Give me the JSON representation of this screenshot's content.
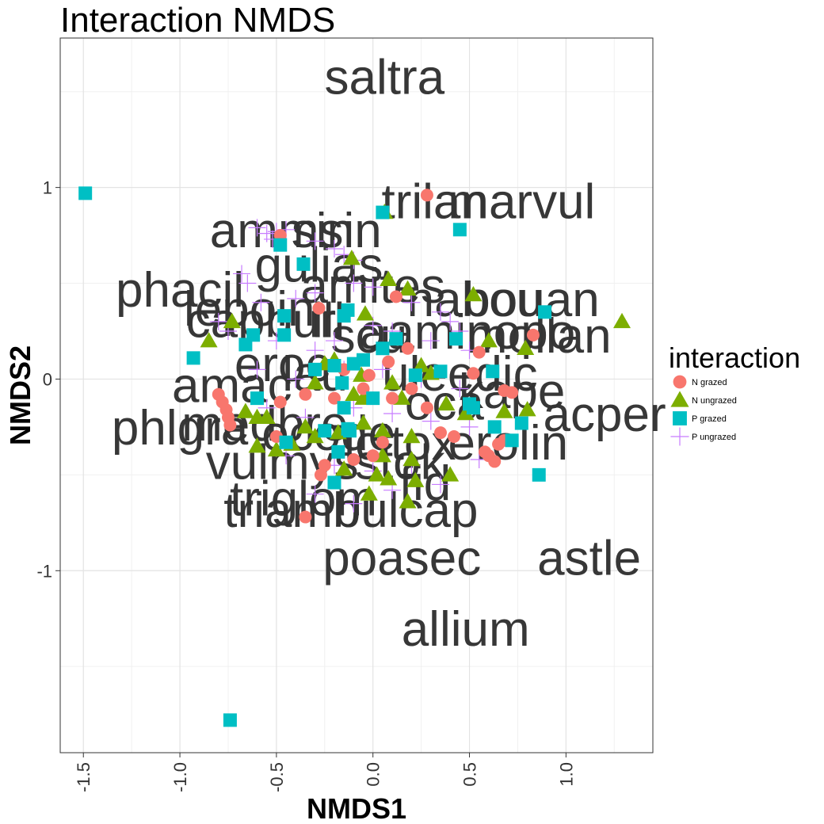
{
  "chart_data": {
    "type": "scatter",
    "title": "Interaction NMDS",
    "xlabel": "NMDS1",
    "ylabel": "NMDS2",
    "xlim": [
      -1.62,
      1.45
    ],
    "ylim": [
      -1.95,
      1.78
    ],
    "x_ticks": [
      -1.5,
      -1.0,
      -0.5,
      0.0,
      0.5,
      1.0
    ],
    "x_tick_labels": [
      "-1.5",
      "-1.0",
      "-0.5",
      "0.0",
      "0.5",
      "1.0"
    ],
    "y_ticks": [
      -1,
      0,
      1
    ],
    "y_tick_labels": [
      "-1",
      "0",
      "1"
    ],
    "grid": true,
    "legend": {
      "title": "interaction",
      "position": "right",
      "entries": [
        "N grazed",
        "N ungrazed",
        "P grazed",
        "P ungrazed"
      ]
    },
    "colors": {
      "N grazed": "#F8766D",
      "N ungrazed": "#7CAE00",
      "P grazed": "#00BFC4",
      "P ungrazed": "#C77CFF"
    },
    "shapes": {
      "N grazed": "circle",
      "N ungrazed": "triangle",
      "P grazed": "square",
      "P ungrazed": "plus"
    },
    "series": [
      {
        "name": "N grazed",
        "points": [
          [
            0.28,
            0.96
          ],
          [
            -0.48,
            0.75
          ],
          [
            0.12,
            0.43
          ],
          [
            -0.28,
            0.37
          ],
          [
            0.83,
            0.23
          ],
          [
            0.55,
            0.14
          ],
          [
            -0.15,
            0.05
          ],
          [
            0.08,
            0.09
          ],
          [
            0.18,
            0.16
          ],
          [
            -0.05,
            -0.05
          ],
          [
            -0.02,
            0.02
          ],
          [
            0.52,
            0.03
          ],
          [
            0.68,
            -0.06
          ],
          [
            0.72,
            -0.07
          ],
          [
            -0.8,
            -0.08
          ],
          [
            -0.78,
            -0.12
          ],
          [
            -0.76,
            -0.16
          ],
          [
            -0.75,
            -0.2
          ],
          [
            -0.74,
            -0.24
          ],
          [
            -0.48,
            -0.12
          ],
          [
            -0.35,
            -0.08
          ],
          [
            -0.2,
            -0.1
          ],
          [
            0.1,
            -0.1
          ],
          [
            0.2,
            -0.05
          ],
          [
            0.28,
            -0.15
          ],
          [
            0.35,
            -0.28
          ],
          [
            0.42,
            -0.3
          ],
          [
            -0.5,
            -0.3
          ],
          [
            -0.25,
            -0.45
          ],
          [
            -0.27,
            -0.5
          ],
          [
            -0.1,
            -0.42
          ],
          [
            0.05,
            -0.33
          ],
          [
            0.58,
            -0.38
          ],
          [
            0.6,
            -0.4
          ],
          [
            0.63,
            -0.43
          ],
          [
            0.68,
            -0.32
          ],
          [
            0.65,
            -0.34
          ],
          [
            -0.35,
            -0.72
          ],
          [
            0.0,
            -0.4
          ]
        ]
      },
      {
        "name": "N ungrazed",
        "points": [
          [
            0.06,
            0.87
          ],
          [
            -0.11,
            0.63
          ],
          [
            0.08,
            0.52
          ],
          [
            0.18,
            0.47
          ],
          [
            0.52,
            0.44
          ],
          [
            -0.73,
            0.3
          ],
          [
            -0.85,
            0.2
          ],
          [
            -0.04,
            0.34
          ],
          [
            1.29,
            0.3
          ],
          [
            0.6,
            0.2
          ],
          [
            0.79,
            0.16
          ],
          [
            -0.25,
            0.08
          ],
          [
            -0.2,
            0.1
          ],
          [
            0.25,
            0.07
          ],
          [
            -0.06,
            0.02
          ],
          [
            0.1,
            -0.02
          ],
          [
            0.3,
            0.03
          ],
          [
            -0.3,
            -0.02
          ],
          [
            -0.1,
            -0.08
          ],
          [
            -0.05,
            -0.1
          ],
          [
            0.15,
            -0.1
          ],
          [
            0.38,
            -0.13
          ],
          [
            0.48,
            -0.18
          ],
          [
            0.68,
            -0.17
          ],
          [
            0.8,
            -0.16
          ],
          [
            -0.66,
            -0.17
          ],
          [
            -0.6,
            -0.2
          ],
          [
            -0.55,
            -0.2
          ],
          [
            -0.35,
            -0.25
          ],
          [
            -0.3,
            -0.3
          ],
          [
            -0.18,
            -0.28
          ],
          [
            -0.05,
            -0.23
          ],
          [
            0.05,
            -0.27
          ],
          [
            0.2,
            -0.3
          ],
          [
            -0.6,
            -0.35
          ],
          [
            -0.5,
            -0.37
          ],
          [
            -0.42,
            -0.34
          ],
          [
            0.05,
            -0.4
          ],
          [
            0.2,
            -0.42
          ],
          [
            -0.15,
            -0.47
          ],
          [
            0.4,
            -0.5
          ],
          [
            0.02,
            -0.5
          ],
          [
            0.08,
            -0.52
          ],
          [
            0.22,
            -0.53
          ],
          [
            -0.02,
            -0.6
          ],
          [
            0.18,
            -0.64
          ]
        ]
      },
      {
        "name": "P grazed",
        "points": [
          [
            -1.49,
            0.97
          ],
          [
            0.05,
            0.87
          ],
          [
            0.45,
            0.78
          ],
          [
            -0.48,
            0.7
          ],
          [
            -0.36,
            0.6
          ],
          [
            -0.62,
            0.23
          ],
          [
            -0.46,
            0.33
          ],
          [
            -0.46,
            0.23
          ],
          [
            -0.13,
            0.36
          ],
          [
            -0.15,
            0.33
          ],
          [
            0.89,
            0.35
          ],
          [
            -0.93,
            0.11
          ],
          [
            -0.66,
            0.18
          ],
          [
            0.43,
            0.21
          ],
          [
            0.12,
            0.21
          ],
          [
            0.05,
            0.16
          ],
          [
            -0.1,
            0.08
          ],
          [
            -0.2,
            0.07
          ],
          [
            -0.05,
            0.1
          ],
          [
            0.35,
            0.04
          ],
          [
            0.62,
            0.04
          ],
          [
            0.22,
            0.02
          ],
          [
            -0.16,
            -0.02
          ],
          [
            -0.3,
            0.05
          ],
          [
            -0.6,
            -0.1
          ],
          [
            0.0,
            -0.1
          ],
          [
            -0.15,
            -0.15
          ],
          [
            0.5,
            -0.13
          ],
          [
            0.52,
            -0.15
          ],
          [
            -0.25,
            -0.27
          ],
          [
            -0.12,
            -0.27
          ],
          [
            -0.13,
            -0.26
          ],
          [
            0.63,
            -0.25
          ],
          [
            0.77,
            -0.23
          ],
          [
            -0.45,
            -0.33
          ],
          [
            0.72,
            -0.32
          ],
          [
            -0.18,
            -0.38
          ],
          [
            0.86,
            -0.5
          ],
          [
            -0.2,
            -0.54
          ],
          [
            -0.74,
            -1.78
          ]
        ]
      },
      {
        "name": "P ungrazed",
        "points": [
          [
            -0.6,
            0.79
          ],
          [
            -0.55,
            0.76
          ],
          [
            -0.52,
            0.73
          ],
          [
            -0.5,
            0.77
          ],
          [
            -0.45,
            0.78
          ],
          [
            -0.3,
            0.72
          ],
          [
            -0.2,
            0.68
          ],
          [
            -0.15,
            0.65
          ],
          [
            -0.1,
            0.62
          ],
          [
            -0.68,
            0.55
          ],
          [
            -0.65,
            0.5
          ],
          [
            -0.58,
            0.4
          ],
          [
            -0.4,
            0.42
          ],
          [
            -0.3,
            0.45
          ],
          [
            -0.1,
            0.5
          ],
          [
            0.0,
            0.48
          ],
          [
            0.2,
            0.4
          ],
          [
            0.35,
            0.35
          ],
          [
            0.4,
            0.3
          ],
          [
            0.45,
            0.25
          ],
          [
            -0.8,
            0.3
          ],
          [
            -0.75,
            0.25
          ],
          [
            -0.5,
            0.2
          ],
          [
            -0.3,
            0.15
          ],
          [
            -0.2,
            0.2
          ],
          [
            0.0,
            0.28
          ],
          [
            0.1,
            0.25
          ],
          [
            0.3,
            0.2
          ],
          [
            0.5,
            0.15
          ],
          [
            -0.6,
            0.05
          ],
          [
            -0.4,
            0.0
          ],
          [
            -0.15,
            0.05
          ],
          [
            0.05,
            0.05
          ],
          [
            0.25,
            0.0
          ],
          [
            0.45,
            -0.05
          ],
          [
            -0.55,
            -0.15
          ],
          [
            -0.35,
            -0.2
          ],
          [
            -0.1,
            -0.15
          ],
          [
            0.1,
            -0.18
          ],
          [
            0.3,
            -0.22
          ],
          [
            0.5,
            -0.25
          ],
          [
            -0.45,
            -0.4
          ],
          [
            -0.2,
            -0.45
          ],
          [
            0.0,
            -0.48
          ],
          [
            0.2,
            -0.45
          ],
          [
            0.35,
            -0.55
          ],
          [
            -0.3,
            -0.6
          ],
          [
            -0.1,
            -0.65
          ],
          [
            0.1,
            -0.58
          ],
          [
            0.55,
            -0.42
          ]
        ]
      }
    ],
    "species_labels": [
      {
        "text": "saltra",
        "x": 0.06,
        "y": 1.58
      },
      {
        "text": "trilan",
        "x": 0.32,
        "y": 0.93
      },
      {
        "text": "marvul",
        "x": 0.77,
        "y": 0.93
      },
      {
        "text": "ammsin",
        "x": -0.4,
        "y": 0.78
      },
      {
        "text": "sin",
        "x": -0.26,
        "y": 0.78
      },
      {
        "text": "gulias",
        "x": -0.28,
        "y": 0.6
      },
      {
        "text": "phacil",
        "x": -1.0,
        "y": 0.47
      },
      {
        "text": "amites",
        "x": 0.0,
        "y": 0.49
      },
      {
        "text": "nabou",
        "x": 0.53,
        "y": 0.42
      },
      {
        "text": "bouan",
        "x": 0.82,
        "y": 0.42
      },
      {
        "text": "lepoin",
        "x": -0.64,
        "y": 0.37
      },
      {
        "text": "capbur",
        "x": -0.58,
        "y": 0.31
      },
      {
        "text": "ill",
        "x": -0.23,
        "y": 0.31
      },
      {
        "text": "scu",
        "x": -0.02,
        "y": 0.23
      },
      {
        "text": "aaminopo",
        "x": 0.49,
        "y": 0.25
      },
      {
        "text": "mollan",
        "x": 0.86,
        "y": 0.23
      },
      {
        "text": "eroc",
        "x": -0.47,
        "y": 0.08
      },
      {
        "text": "lau",
        "x": -0.3,
        "y": 0.03
      },
      {
        "text": "uleedic",
        "x": 0.45,
        "y": 0.03
      },
      {
        "text": "amac",
        "x": -0.73,
        "y": -0.03
      },
      {
        "text": "oca",
        "x": 0.37,
        "y": -0.12
      },
      {
        "text": "kape",
        "x": 0.72,
        "y": -0.06
      },
      {
        "text": "acper",
        "x": 1.2,
        "y": -0.18
      },
      {
        "text": "phlgra",
        "x": -1.0,
        "y": -0.25
      },
      {
        "text": "medbre",
        "x": -0.56,
        "y": -0.23
      },
      {
        "text": "ocode",
        "x": -0.23,
        "y": -0.28
      },
      {
        "text": "icitox",
        "x": 0.14,
        "y": -0.33
      },
      {
        "text": "erolin",
        "x": 0.7,
        "y": -0.33
      },
      {
        "text": "vulmys",
        "x": -0.47,
        "y": -0.43
      },
      {
        "text": "stok",
        "x": 0.14,
        "y": -0.43
      },
      {
        "text": "fid",
        "x": 0.27,
        "y": -0.54
      },
      {
        "text": "triglom",
        "x": -0.36,
        "y": -0.62
      },
      {
        "text": "triamb",
        "x": -0.42,
        "y": -0.68
      },
      {
        "text": "bulcap",
        "x": 0.17,
        "y": -0.68
      },
      {
        "text": "poasec",
        "x": 0.15,
        "y": -0.93
      },
      {
        "text": "astle",
        "x": 1.12,
        "y": -0.93
      },
      {
        "text": "allium",
        "x": 0.48,
        "y": -1.3
      }
    ]
  }
}
